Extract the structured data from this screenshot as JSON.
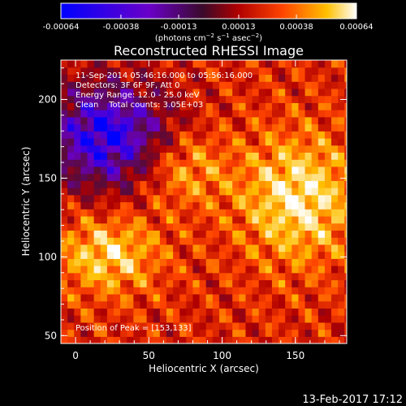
{
  "chart_data": {
    "type": "heatmap",
    "title": "Reconstructed RHESSI Image",
    "xlabel": "Heliocentric X (arcsec)",
    "ylabel": "Heliocentric Y (arcsec)",
    "xlim": [
      -10,
      185
    ],
    "ylim": [
      45,
      225
    ],
    "xticks": [
      0,
      50,
      100,
      150
    ],
    "yticks": [
      50,
      100,
      150,
      200
    ],
    "colorbar": {
      "range": [
        -0.00064,
        0.00064
      ],
      "tick_labels": [
        "-0.00064",
        "-0.00038",
        "-0.00013",
        "0.00013",
        "0.00038",
        "0.00064"
      ],
      "tick_values": [
        -0.00064,
        -0.00038,
        -0.00013,
        0.00013,
        0.00038,
        0.00064
      ],
      "colors": [
        "#0000ff",
        "#6a00c8",
        "#5a0a3a",
        "#b00000",
        "#ff4400",
        "#ffc000",
        "#ffffff"
      ]
    },
    "annotations": [
      "11-Sep-2014 05:46:16.000 to 05:56:16.000",
      "Detectors: 3F 6F 9F, Att 0",
      "Energy Range: 12.0 - 25.0 keV",
      "Clean    Total counts: 3.05E+03"
    ],
    "peak_label": "Position of Peak = [153,133]",
    "peak": [
      153,
      133
    ],
    "grid": false
  },
  "footer": {
    "timestamp": "13-Feb-2017 17:12"
  }
}
